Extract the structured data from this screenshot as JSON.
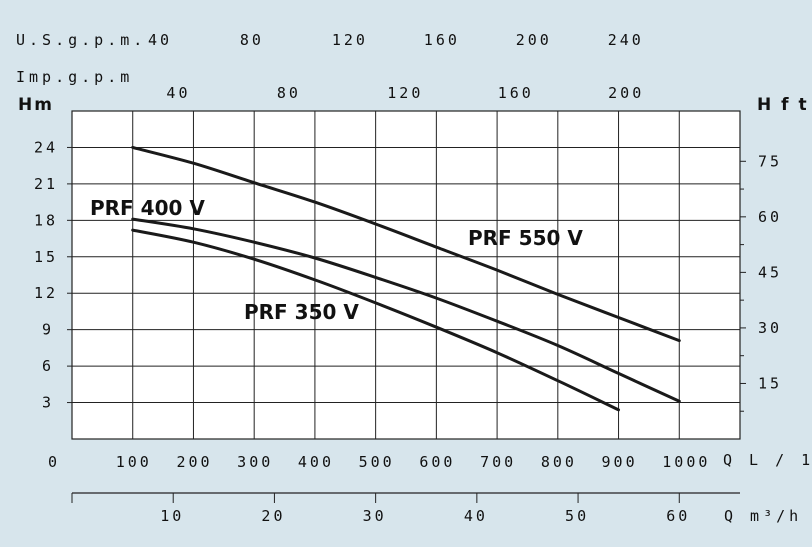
{
  "chart_data": {
    "type": "line",
    "title": "",
    "series": [
      {
        "name": "PRF 550 V",
        "x": [
          100,
          200,
          300,
          400,
          500,
          600,
          700,
          800,
          900,
          1000
        ],
        "y": [
          24.0,
          22.7,
          21.1,
          19.5,
          17.7,
          15.8,
          13.9,
          11.9,
          10.0,
          8.1
        ]
      },
      {
        "name": "PRF 400 V",
        "x": [
          100,
          200,
          300,
          400,
          500,
          600,
          700,
          800,
          900,
          1000
        ],
        "y": [
          18.1,
          17.3,
          16.2,
          14.9,
          13.3,
          11.6,
          9.7,
          7.7,
          5.4,
          3.1
        ]
      },
      {
        "name": "PRF 350 V",
        "x": [
          100,
          200,
          300,
          400,
          500,
          600,
          700,
          800,
          900
        ],
        "y": [
          17.2,
          16.2,
          14.8,
          13.1,
          11.2,
          9.2,
          7.1,
          4.8,
          2.4
        ]
      }
    ],
    "axes": {
      "left": {
        "label": "Hm",
        "ticks": [
          "24",
          "21",
          "18",
          "15",
          "12",
          "9",
          "6",
          "3"
        ],
        "range": [
          0,
          27
        ]
      },
      "right": {
        "label": "H f t",
        "ticks": [
          "75",
          "60",
          "45",
          "30",
          "15"
        ]
      },
      "bottom_lmin": {
        "label": "Q L / 1'",
        "ticks": [
          "0",
          "100",
          "200",
          "300",
          "400",
          "500",
          "600",
          "700",
          "800",
          "900",
          "1000"
        ],
        "range": [
          0,
          1100
        ]
      },
      "bottom_m3h": {
        "label": "Q m³/h",
        "ticks": [
          "10",
          "20",
          "30",
          "40",
          "50",
          "60"
        ]
      },
      "top_usgpm": {
        "label": "U.S.g.p.m.",
        "ticks": [
          "40",
          "80",
          "120",
          "160",
          "200",
          "240"
        ]
      },
      "top_impgpm": {
        "label": "Imp.g.p.m",
        "ticks": [
          "40",
          "80",
          "120",
          "160",
          "200"
        ]
      }
    },
    "grid": true
  }
}
